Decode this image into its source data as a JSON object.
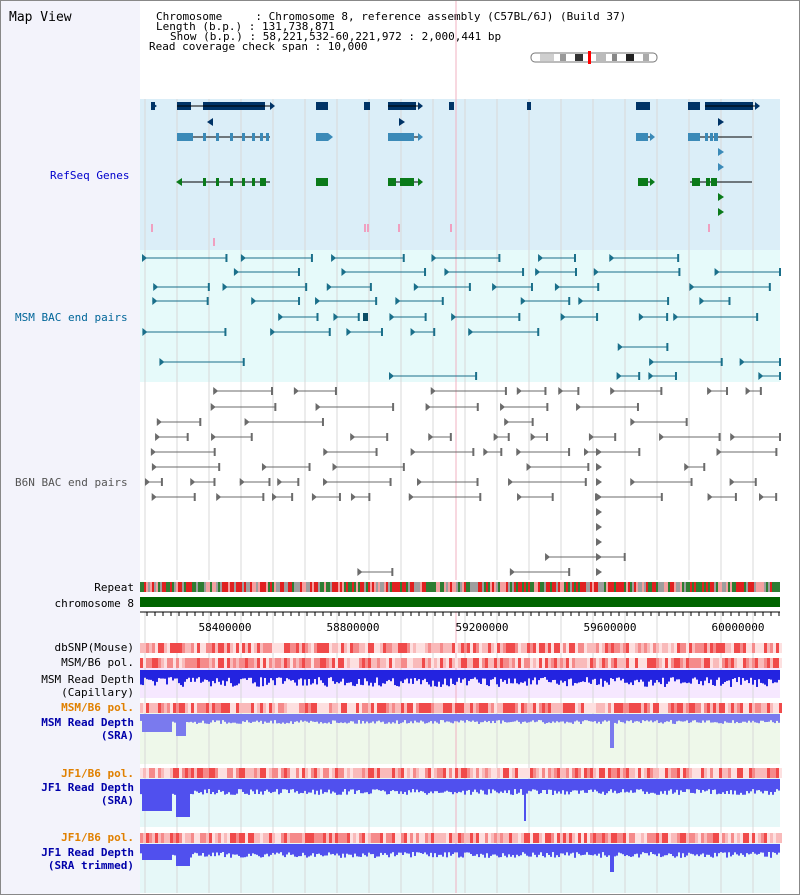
{
  "title": "Map View",
  "header": {
    "line1": "Chromosome     : Chromosome 8, reference assembly (C57BL/6J) (Build 37)",
    "line2": "Length (b.p.) : 131,738,871",
    "line3": "Show (b.p.) : 58,221,532-60,221,972 : 2,000,441 bp",
    "line4": "Read coverage check span : 10,000"
  },
  "tracks": {
    "refseq": "RefSeq Genes",
    "msm_bac": "MSM BAC end pairs",
    "b6n_bac": "B6N BAC end pairs",
    "repeat": "Repeat",
    "chromosome": "chromosome 8",
    "dbsnp": "dbSNP(Mouse)",
    "msm_b6_pol": "MSM/B6 pol.",
    "msm_depth_cap_1": "MSM Read Depth",
    "msm_depth_cap_2": "(Capillary)",
    "msm_b6_pol2": "MSM/B6 pol.",
    "msm_depth_sra_1": "MSM Read Depth",
    "msm_depth_sra_2": "(SRA)",
    "jf1_b6_pol": "JF1/B6 pol.",
    "jf1_depth_sra_1": "JF1 Read Depth",
    "jf1_depth_sra_2": "(SRA)",
    "jf1_b6_pol2": "JF1/B6 pol.",
    "jf1_depth_trim_1": "JF1 Read Depth",
    "jf1_depth_trim_2": "(SRA trimmed)"
  },
  "axis": {
    "ticks": [
      "58400000",
      "58800000",
      "59200000",
      "59600000",
      "60000000"
    ]
  },
  "colors": {
    "refseq_label": "#0000cc",
    "msm_label": "#006699",
    "b6n_label": "#555555",
    "orange_label": "#e08000",
    "blue_label": "#0000aa",
    "refseq_bg": "#dbeef8",
    "msm_bg": "#e6fafa",
    "chrom_green": "#006400"
  }
}
